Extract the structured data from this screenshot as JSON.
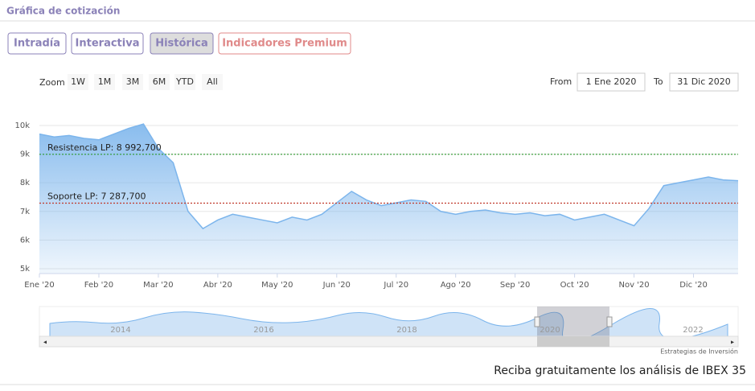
{
  "header": {
    "title": "Gráfica de cotización"
  },
  "tabs": [
    "Intradía",
    "Interactiva",
    "Histórica",
    "Indicadores Premium"
  ],
  "range_selector": {
    "zoom_label": "Zoom",
    "buttons": [
      "1W",
      "1M",
      "3M",
      "6M",
      "YTD",
      "All"
    ],
    "from_label": "From",
    "from": "1 Ene 2020",
    "to_label": "To",
    "to": "31 Dic 2020"
  },
  "chart_data": {
    "type": "area",
    "categories": [
      "Ene '20",
      null,
      null,
      null,
      "Feb '20",
      null,
      null,
      null,
      "Mar '20",
      null,
      null,
      null,
      "Abr '20",
      null,
      null,
      null,
      "May '20",
      null,
      null,
      null,
      "Jun '20",
      null,
      null,
      null,
      "Jul '20",
      null,
      null,
      null,
      "Ago '20",
      null,
      null,
      null,
      "Sep '20",
      null,
      null,
      null,
      "Oct '20",
      null,
      null,
      null,
      "Nov '20",
      null,
      null,
      null,
      "Dic '20",
      null,
      null,
      null
    ],
    "values": [
      9700,
      9600,
      9650,
      9550,
      9500,
      9700,
      9900,
      10050,
      9200,
      8700,
      7000,
      6400,
      6700,
      6900,
      6800,
      6700,
      6600,
      6800,
      6700,
      6900,
      7300,
      7700,
      7400,
      7200,
      7300,
      7400,
      7350,
      7000,
      6900,
      7000,
      7050,
      6950,
      6900,
      6950,
      6850,
      6900,
      6700,
      6800,
      6900,
      6700,
      6500,
      7100,
      7900,
      8000,
      8100,
      8200,
      8100,
      8070
    ],
    "color": "#7cb5ec",
    "ylim": [
      4830,
      10870
    ],
    "yticks": [
      {
        "value": 5000,
        "label": "5k"
      },
      {
        "value": 6000,
        "label": "6k"
      },
      {
        "value": 7000,
        "label": "7k"
      },
      {
        "value": 8000,
        "label": "8k"
      },
      {
        "value": 9000,
        "label": "9k"
      },
      {
        "value": 10000,
        "label": "10k"
      }
    ],
    "grid": true,
    "plot_lines": [
      {
        "value": 8992.7,
        "label": "Resistencia LP: 8 992,700",
        "color": "#2e9b2e"
      },
      {
        "value": 7287.7,
        "label": "Soporte LP: 7 287,700",
        "color": "#c0392b"
      }
    ]
  },
  "navigator": {
    "labels": [
      "2014",
      "2016",
      "2018",
      "2020",
      "2022"
    ]
  },
  "credit": "Estrategias de Inversión",
  "footer": "Reciba gratuitamente los análisis de IBEX 35"
}
